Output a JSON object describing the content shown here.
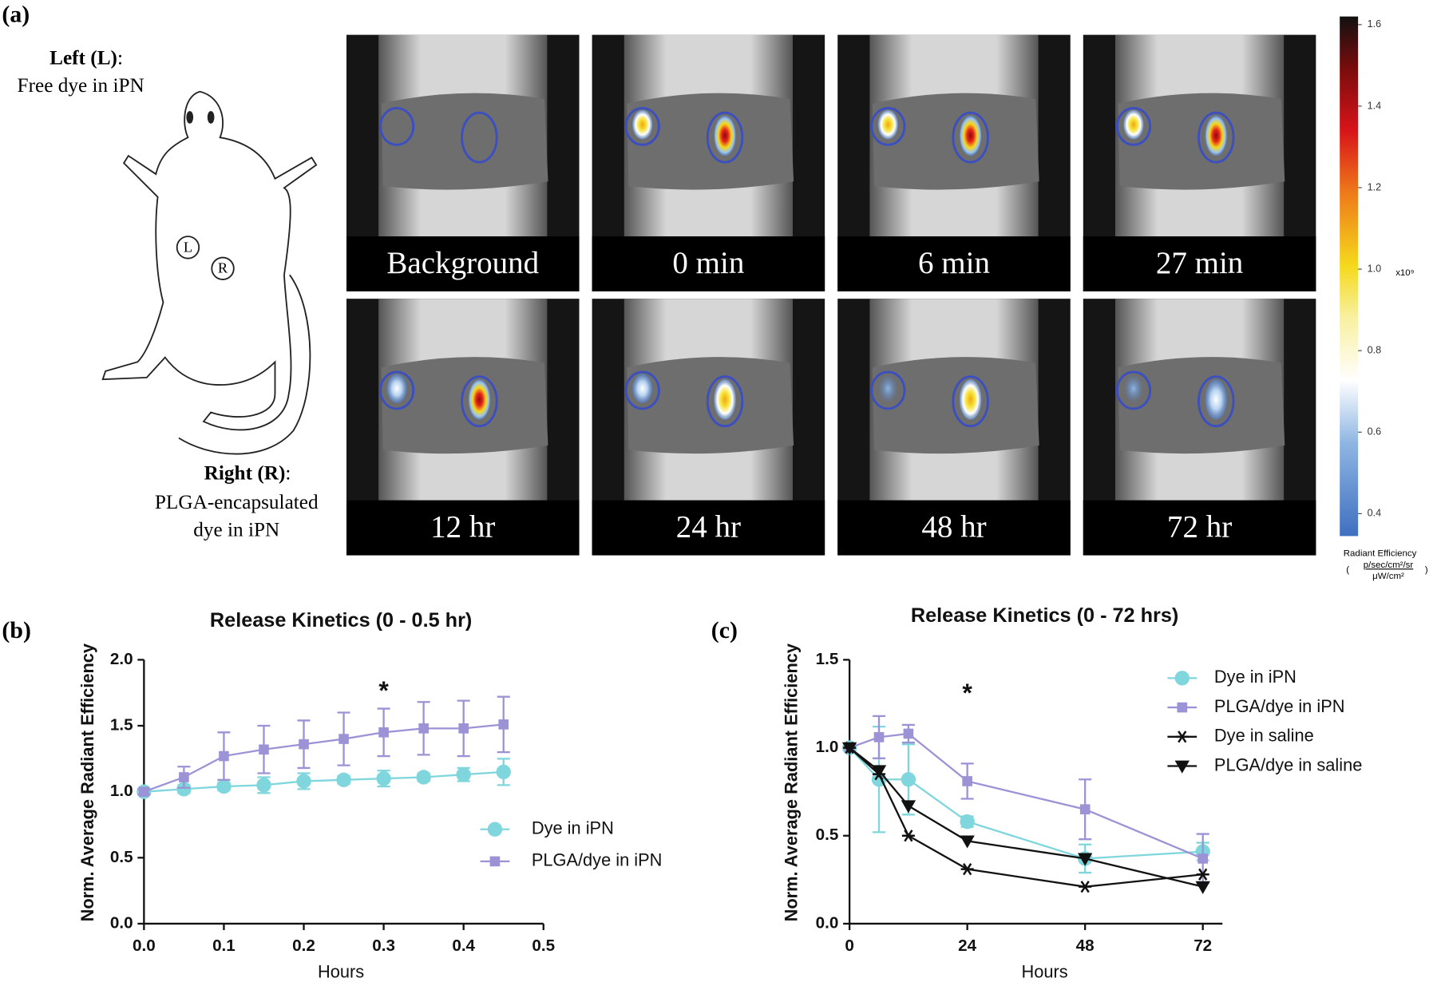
{
  "panel_labels": [
    "(a)",
    "(b)",
    "(c)"
  ],
  "panel_a": {
    "left_title": "Left (L)",
    "left_colon": ":",
    "left_desc": "Free dye in iPN",
    "right_title": "Right (R)",
    "right_colon": ":",
    "right_desc": [
      "PLGA-encapsulated",
      "dye in iPN"
    ],
    "mouse_markers": [
      "L",
      "R"
    ],
    "images": [
      "Background",
      "0 min",
      "6 min",
      "27 min",
      "12 hr",
      "24 hr",
      "48 hr",
      "72 hr"
    ],
    "colorbar": {
      "lim": [
        0.345,
        1.62
      ],
      "ticks": [
        0.4,
        0.6,
        0.8,
        {
          "value": 1.0,
          "label": "1.0"
        },
        1.2,
        1.4,
        1.6
      ],
      "multiplier": "x10⁹",
      "title": "Radiant Efficiency",
      "unit_numerator": "p/sec/cm²/sr",
      "unit_denominator": "μW/cm²"
    }
  },
  "chart_data": [
    {
      "type": "line",
      "title": "Release Kinetics (0 - 0.5 hr)",
      "xlabel": "Hours",
      "ylabel": "Norm. Average Radiant Efficiency",
      "x": [
        0,
        0.05,
        0.1,
        0.15,
        0.2,
        0.25,
        0.3,
        0.35,
        0.4,
        0.45
      ],
      "xlim": [
        0,
        0.5
      ],
      "xticks": [
        {
          "value": 0,
          "label": "0.0"
        },
        0.1,
        0.2,
        0.3,
        0.4,
        0.5
      ],
      "ylim": [
        0,
        2
      ],
      "yticks": [
        {
          "value": 0,
          "label": "0.0"
        },
        0.5,
        {
          "value": 1,
          "label": "1.0"
        },
        1.5,
        {
          "value": 2,
          "label": "2.0"
        }
      ],
      "series": [
        {
          "name": "Dye in iPN",
          "color": "#7fd6dc",
          "marker": "circle",
          "values": [
            1.0,
            1.02,
            1.04,
            1.05,
            1.08,
            1.09,
            1.1,
            1.11,
            1.13,
            1.15
          ],
          "errors": [
            0.02,
            0.03,
            0.03,
            0.06,
            0.06,
            0.03,
            0.06,
            0.03,
            0.05,
            0.1
          ]
        },
        {
          "name": "PLGA/dye in iPN",
          "color": "#9b93d6",
          "marker": "square",
          "values": [
            1.0,
            1.11,
            1.27,
            1.32,
            1.36,
            1.4,
            1.45,
            1.48,
            1.48,
            1.51
          ],
          "errors": [
            0.02,
            0.08,
            0.18,
            0.18,
            0.18,
            0.2,
            0.18,
            0.2,
            0.21,
            0.21
          ]
        }
      ],
      "annotations": [
        {
          "text": "*",
          "x": 0.3,
          "y": 1.75
        }
      ]
    },
    {
      "type": "line",
      "title": "Release Kinetics (0 - 72 hrs)",
      "xlabel": "Hours",
      "ylabel": "Norm. Average Radiant Efficiency",
      "x": [
        0,
        6,
        12,
        24,
        48,
        72
      ],
      "xlim": [
        0,
        76
      ],
      "xticks": [
        0,
        24,
        48,
        72
      ],
      "ylim": [
        0,
        1.5
      ],
      "yticks": [
        {
          "value": 0,
          "label": "0.0"
        },
        0.5,
        {
          "value": 1,
          "label": "1.0"
        },
        1.5
      ],
      "series": [
        {
          "name": "Dye in iPN",
          "color": "#7fd6dc",
          "marker": "circle",
          "values": [
            1.0,
            0.82,
            0.82,
            0.58,
            0.37,
            0.41
          ],
          "errors": [
            0,
            0.3,
            0.2,
            0.03,
            0.08,
            0.05
          ]
        },
        {
          "name": "PLGA/dye in iPN",
          "color": "#9b93d6",
          "marker": "square",
          "values": [
            1.0,
            1.06,
            1.08,
            0.81,
            0.65,
            0.37
          ],
          "errors": [
            0,
            0.12,
            0.05,
            0.1,
            0.17,
            0.14
          ]
        },
        {
          "name": "Dye in saline",
          "color": "#111111",
          "marker": "asterisk",
          "values": [
            1.0,
            0.85,
            0.5,
            0.31,
            0.21,
            0.28
          ]
        },
        {
          "name": "PLGA/dye in saline",
          "color": "#111111",
          "marker": "triangle-down",
          "values": [
            1.0,
            0.87,
            0.67,
            0.47,
            0.37,
            0.21
          ]
        }
      ],
      "annotations": [
        {
          "text": "*",
          "x": 24,
          "y": 1.3
        }
      ]
    }
  ]
}
